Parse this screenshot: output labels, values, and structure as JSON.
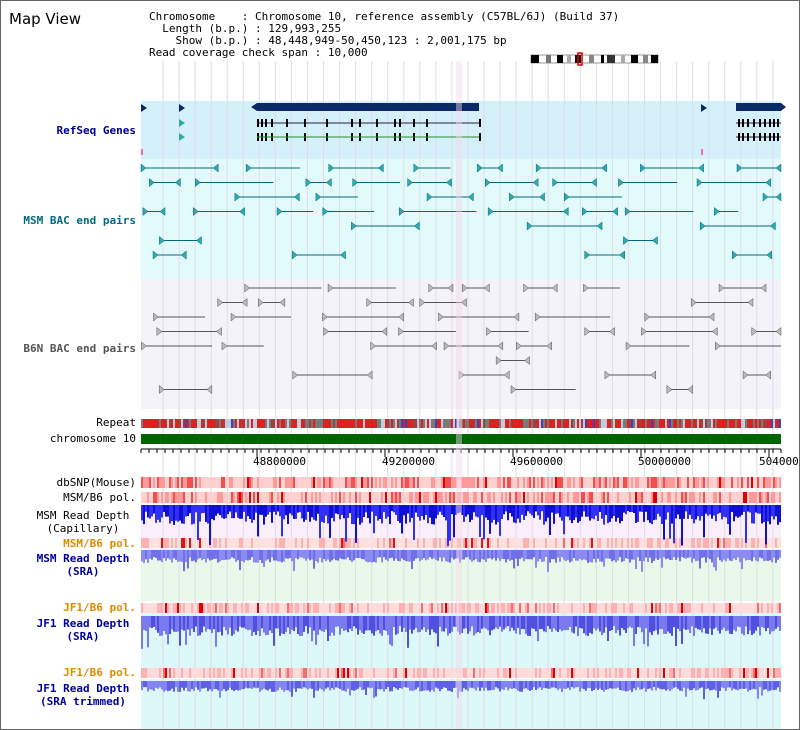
{
  "page": {
    "title": "Map View"
  },
  "info": {
    "chromosome_key": "Chromosome",
    "chromosome_value": "Chromosome 10, reference assembly (C57BL/6J) (Build 37)",
    "length_key": "Length (b.p.)",
    "length_value": "129,993,255",
    "show_key": "Show (b.p.)",
    "show_value": "48,448,949-50,450,123 : 2,001,175 bp",
    "coverage_key": "Read coverage check span",
    "coverage_value": "10,000"
  },
  "tracks": {
    "refseq": "RefSeq Genes",
    "msm_bac": "MSM BAC end pairs",
    "b6n_bac": "B6N BAC end pairs",
    "repeat": "Repeat",
    "chromosome": "chromosome 10",
    "dbsnp": "dbSNP(Mouse)",
    "msm_pol1": "MSM/B6 pol.",
    "msm_depth_cap_1": "MSM Read Depth",
    "msm_depth_cap_2": "(Capillary)",
    "msm_pol2": "MSM/B6 pol.",
    "msm_depth_sra_1": "MSM Read Depth",
    "msm_depth_sra_2": "(SRA)",
    "jf1_pol1": "JF1/B6 pol.",
    "jf1_depth_sra_1": "JF1 Read Depth",
    "jf1_depth_sra_2": "(SRA)",
    "jf1_pol2": "JF1/B6 pol.",
    "jf1_depth_trim_1": "JF1 Read Depth",
    "jf1_depth_trim_2": "(SRA trimmed)"
  },
  "axis": {
    "ticks": [
      "48800000",
      "49200000",
      "49600000",
      "50000000",
      "504000"
    ]
  },
  "colors": {
    "refseq_label": "#00008b",
    "msm_label": "#006a80",
    "b6n_label": "#555555",
    "orange_label": "#e08a00",
    "blue_label": "#0000a0",
    "refseq_bg": "#d4f0fa",
    "msm_bg": "#e2fafa",
    "b6n_bg": "#f5f3fa",
    "chrom_green": "#006400",
    "depth_blue": "#1e1ee6",
    "depth_light": "#8080f0"
  }
}
